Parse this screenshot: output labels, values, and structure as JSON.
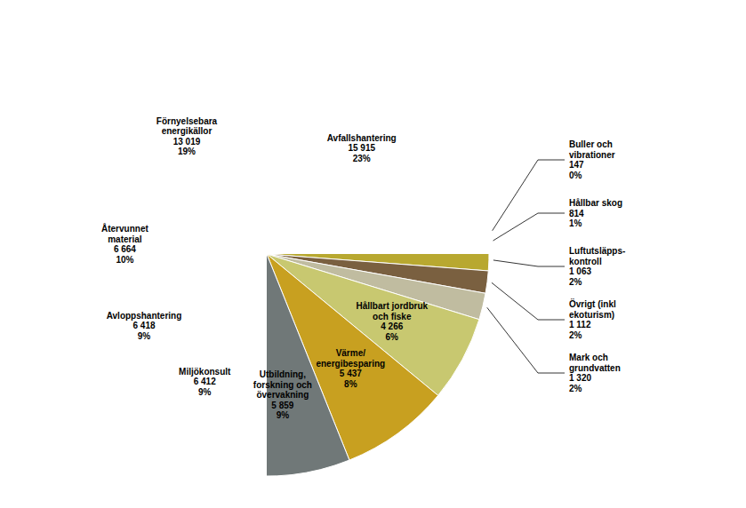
{
  "chart_data": {
    "type": "pie",
    "categories": [
      "Avfallshantering",
      "Buller och\nvibrationer",
      "Hållbar skog",
      "Luftutsläpps-\nkontroll",
      "Övrigt (inkl\nekoturism)",
      "Mark och\ngrundvatten",
      "Hållbart jordbruk\noch fiske",
      "Värme/\nenergi­besparing",
      "Utbildning,\nforskning och\növervakning",
      "Miljökonsult",
      "Avloppshantering",
      "Återvunnet\nmaterial",
      "Förnyelsebara\nenergi­källor"
    ],
    "values": [
      15915,
      147,
      814,
      1063,
      1112,
      1320,
      4266,
      5437,
      5859,
      6412,
      6418,
      6664,
      13019
    ],
    "value_labels": [
      "15 915",
      "147",
      "814",
      "1 063",
      "1 112",
      "1 320",
      "4 266",
      "5 437",
      "5 859",
      "6 412",
      "6 418",
      "6 664",
      "13 019"
    ],
    "shares": [
      23,
      0,
      1,
      2,
      2,
      2,
      6,
      8,
      9,
      9,
      9,
      10,
      19
    ],
    "share_labels": [
      "23%",
      "0%",
      "1%",
      "2%",
      "2%",
      "2%",
      "6%",
      "8%",
      "9%",
      "9%",
      "9%",
      "10%",
      "19%"
    ],
    "colors": [
      "#c8b89a",
      "#5a5a5a",
      "#a0a080",
      "#b8a830",
      "#7a6040",
      "#c0bca0",
      "#c8c870",
      "#c8a020",
      "#707878",
      "#c09050",
      "#d4c858",
      "#b87830",
      "#e8e8d8"
    ]
  }
}
